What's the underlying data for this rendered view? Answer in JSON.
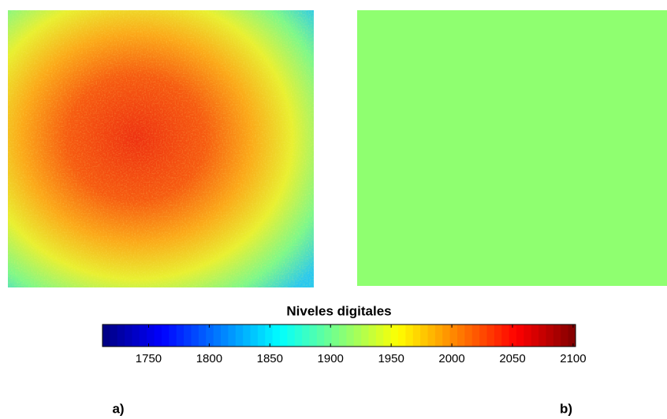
{
  "chart_data": {
    "type": "heatmap",
    "title": "Niveles digitales",
    "clim": [
      1712,
      2102
    ],
    "cticks": [
      1750,
      1800,
      1850,
      1900,
      1950,
      2000,
      2050,
      2100
    ],
    "panel_labels": [
      "a)",
      "b)"
    ]
  }
}
